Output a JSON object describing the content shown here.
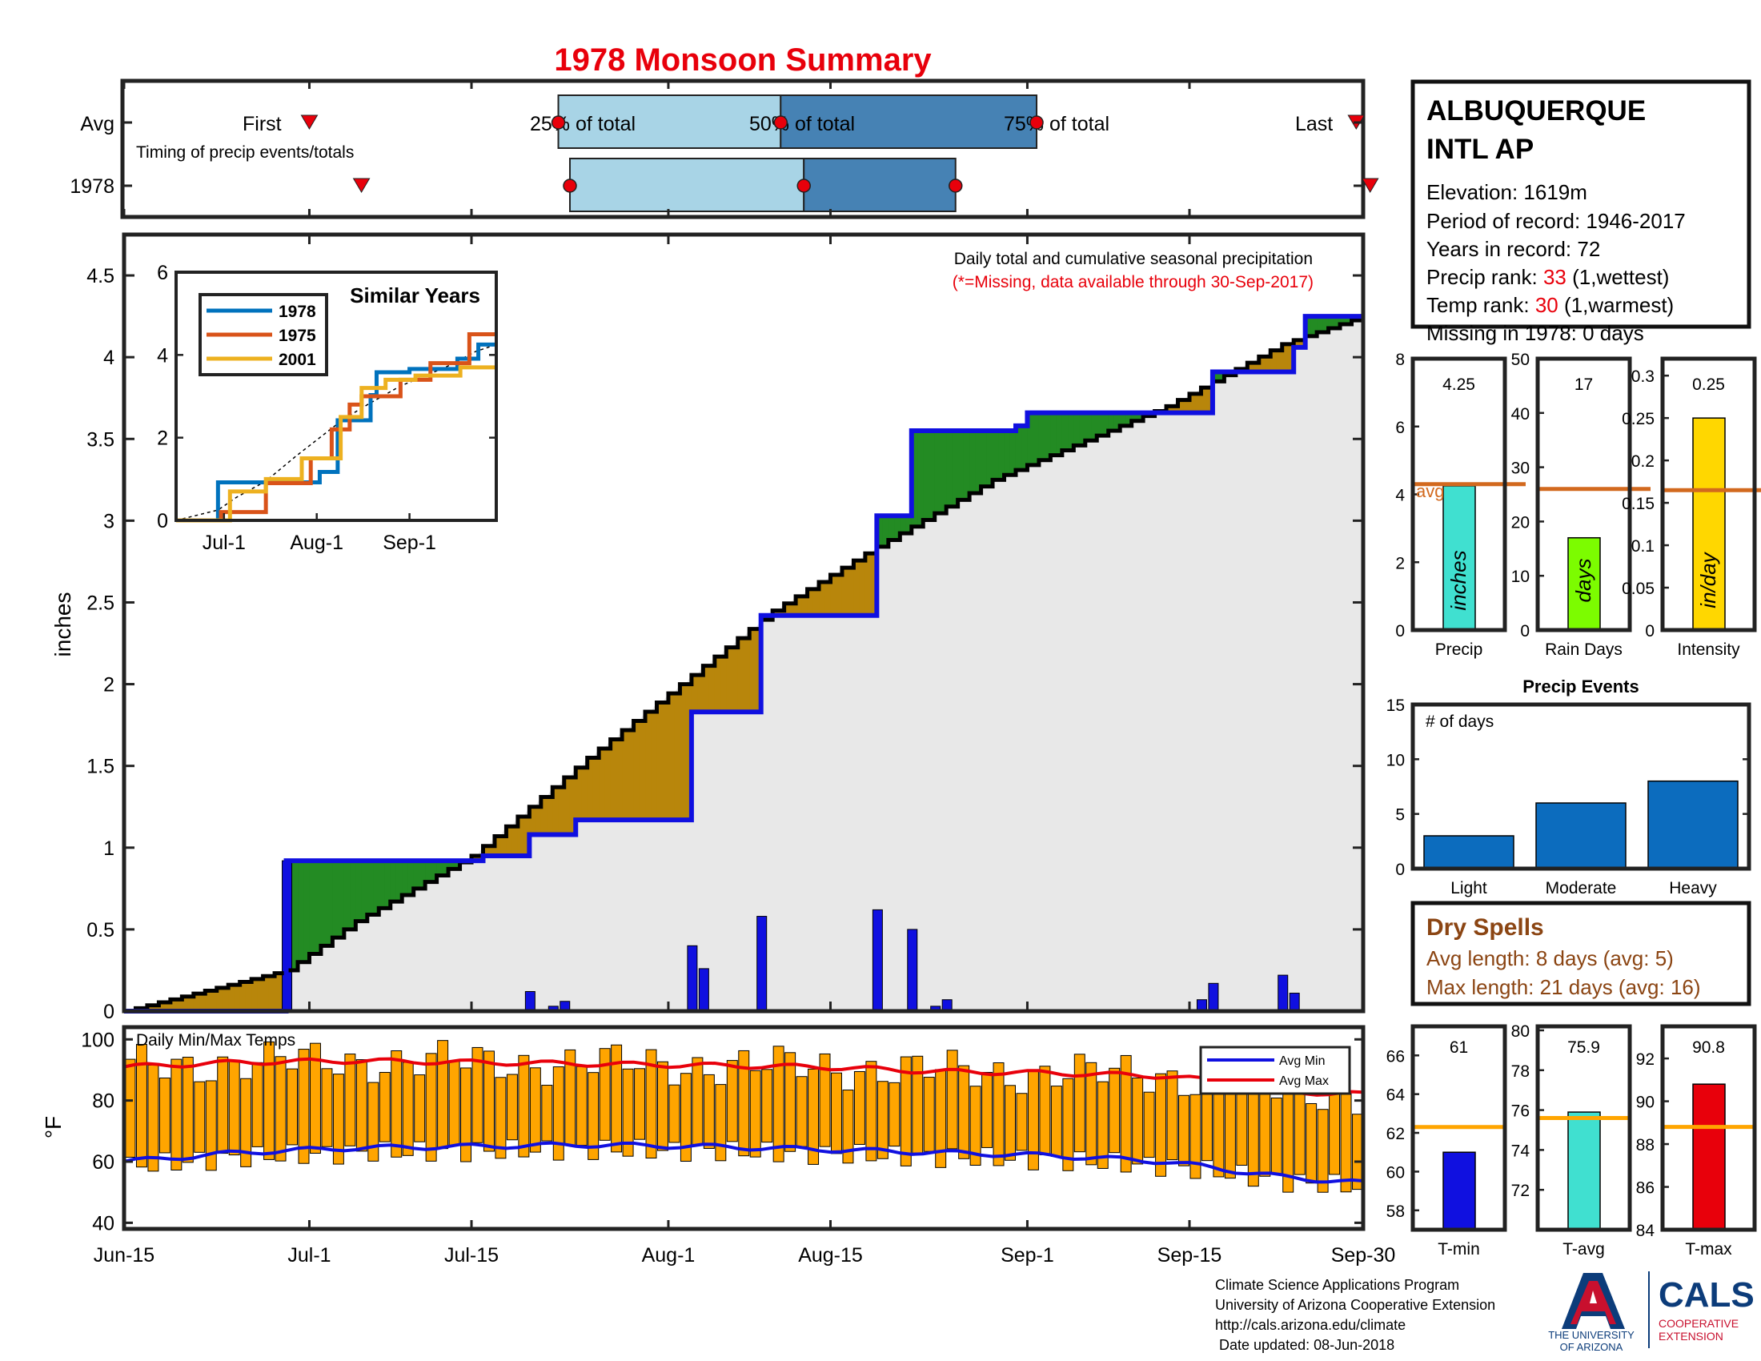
{
  "title": "1978 Monsoon Summary",
  "timing": {
    "row_avg": "Avg",
    "row_year": "1978",
    "first": "First",
    "last": "Last",
    "q25": "25% of total",
    "q50": "50% of total",
    "q75": "75% of total",
    "caption": "Timing of precip events/totals",
    "avg": {
      "first": 16,
      "q25": 37.5,
      "q50": 56.7,
      "q75": 78.8,
      "last": 106.4
    },
    "year": {
      "first": 20.5,
      "q25": 38.5,
      "q50": 58.7,
      "q75": 71.8,
      "last": 107.6
    }
  },
  "main": {
    "ylabel": "inches",
    "annotation": "Daily total and cumulative seasonal precipitation",
    "missing_note": "(*=Missing, data available through 30-Sep-2017)",
    "yticks": [
      "0",
      "0.5",
      "1",
      "1.5",
      "2",
      "2.5",
      "3",
      "3.5",
      "4",
      "4.5"
    ],
    "ylim": [
      0,
      4.75
    ]
  },
  "inset": {
    "title": "Similar Years",
    "yticks": [
      "0",
      "2",
      "4",
      "6"
    ],
    "xticks": [
      "Jul-1",
      "Aug-1",
      "Sep-1"
    ],
    "legend": [
      "1978",
      "1975",
      "2001"
    ]
  },
  "xaxis": {
    "ticks": [
      "Jun-15",
      "Jul-1",
      "Jul-15",
      "Aug-1",
      "Aug-15",
      "Sep-1",
      "Sep-15",
      "Sep-30"
    ],
    "tick_days": [
      0,
      16,
      30,
      47,
      61,
      78,
      92,
      107
    ]
  },
  "temps": {
    "label": "Daily Min/Max Temps",
    "ylabel": "°F",
    "yticks": [
      "40",
      "60",
      "80",
      "100"
    ],
    "legend_min": "Avg Min",
    "legend_max": "Avg Max"
  },
  "station": {
    "name_line1": "ALBUQUERQUE",
    "name_line2": "INTL AP",
    "elevation": "Elevation: 1619m",
    "period": "Period of record: 1946-2017",
    "years": "Years in record: 72",
    "precip_rank_label": "Precip rank: ",
    "precip_rank": "33",
    "precip_rank_note": " (1,wettest)",
    "temp_rank_label": "Temp rank: ",
    "temp_rank": "30",
    "temp_rank_note": " (1,warmest)",
    "missing": "Missing in 1978: 0 days"
  },
  "stats": {
    "precip": {
      "value": "4.25",
      "unit": "inches",
      "label": "Precip",
      "avg_label": "avg",
      "yticks": [
        "0",
        "2",
        "4",
        "6",
        "8"
      ]
    },
    "rain_days": {
      "value": "17",
      "unit": "days",
      "label": "Rain Days",
      "yticks": [
        "0",
        "10",
        "20",
        "30",
        "40",
        "50"
      ]
    },
    "intensity": {
      "value": "0.25",
      "unit": "in/day",
      "label": "Intensity",
      "yticks": [
        "0",
        "0.05",
        "0.1",
        "0.15",
        "0.2",
        "0.25",
        "0.3"
      ]
    }
  },
  "events": {
    "title": "Precip Events",
    "ylabel": "# of days",
    "yticks": [
      "0",
      "5",
      "10",
      "15"
    ]
  },
  "dry_spells": {
    "title": "Dry Spells",
    "avg_length": "Avg length: 8 days (avg: 5)",
    "max_length": "Max length: 21 days (avg: 16)"
  },
  "temp_stats": {
    "tmin": {
      "value": "61",
      "label": "T-min",
      "yticks": [
        "58",
        "60",
        "62",
        "64",
        "66"
      ]
    },
    "tavg": {
      "value": "75.9",
      "label": "T-avg",
      "yticks": [
        "72",
        "74",
        "76",
        "78",
        "80"
      ]
    },
    "tmax": {
      "value": "90.8",
      "label": "T-max",
      "yticks": [
        "84",
        "86",
        "88",
        "90",
        "92"
      ]
    }
  },
  "footer": {
    "line1": "Climate Science Applications Program",
    "line2": "University of Arizona Cooperative Extension",
    "line3": "http://cals.arizona.edu/climate",
    "line4": " Date updated: 08-Jun-2018",
    "ua_line1": "THE UNIVERSITY",
    "ua_line2": "OF ARIZONA",
    "cals": "CALS",
    "cals_sub1": "COOPERATIVE",
    "cals_sub2": "EXTENSION"
  },
  "colors": {
    "title": "#e8000b",
    "observed": "#1010e0",
    "wet_fill": "#238b23",
    "dry_fill": "#b8860b",
    "normal_fill": "#e8e8e8",
    "q_light": "#a8d4e6",
    "q_dark": "#4682b4",
    "temp_bar": "#ffa500",
    "avg_max": "#e8000b",
    "avg_min": "#1010e0",
    "precip_bar": "#40e0d0",
    "raindays_bar": "#7cfc00",
    "intensity_bar": "#ffd700",
    "avg_line": "#d2691e",
    "events_bar": "#0c6cbe",
    "tavg_line": "#ffa500",
    "dry_text": "#8b4513",
    "cals_blue": "#0c3c7a"
  },
  "chart_data": [
    {
      "type": "area",
      "title": "Daily total and cumulative seasonal precipitation",
      "xlabel": "",
      "ylabel": "inches",
      "ylim": [
        0,
        4.75
      ],
      "xlim_days": [
        0,
        107
      ],
      "series": [
        {
          "name": "",
          "kind": "cumulative_observed",
          "x_days": [
            0,
            13,
            14,
            30,
            31,
            34,
            35,
            38,
            39,
            48,
            49,
            54,
            55,
            64,
            65,
            67,
            68,
            77,
            78,
            93,
            94,
            100,
            101,
            102,
            103
          ],
          "y": [
            0,
            0,
            0.92,
            0.92,
            0.95,
            0.95,
            1.08,
            1.08,
            1.17,
            1.17,
            1.83,
            1.83,
            2.42,
            2.42,
            3.03,
            3.03,
            3.55,
            3.58,
            3.66,
            3.66,
            3.91,
            3.91,
            4.06,
            4.25,
            4.25
          ]
        },
        {
          "name": "",
          "kind": "cumulative_average",
          "x_days": [
            0,
            14,
            20,
            30,
            40,
            48,
            56,
            64,
            75,
            90,
            100,
            107
          ],
          "y": [
            0,
            0.25,
            0.55,
            0.95,
            1.55,
            2.0,
            2.45,
            2.8,
            3.25,
            3.7,
            4.08,
            4.25
          ]
        },
        {
          "name": "",
          "kind": "daily_precip",
          "x_days": [
            14,
            35,
            37,
            38,
            49,
            50,
            55,
            65,
            68,
            70,
            71,
            93,
            94,
            100,
            101
          ],
          "y": [
            0.92,
            0.12,
            0.03,
            0.06,
            0.4,
            0.26,
            0.58,
            0.62,
            0.5,
            0.03,
            0.07,
            0.07,
            0.17,
            0.22,
            0.11
          ]
        }
      ]
    },
    {
      "type": "line",
      "title": "Similar Years",
      "ylim": [
        0,
        6
      ],
      "xlim_days": [
        0,
        107
      ],
      "series": [
        {
          "name": "1978",
          "x_days": [
            0,
            14,
            30,
            48,
            54,
            65,
            67,
            78,
            94,
            101,
            107
          ],
          "y": [
            0,
            0.92,
            0.92,
            1.17,
            2.42,
            3.03,
            3.58,
            3.66,
            3.91,
            4.25,
            4.25
          ]
        },
        {
          "name": "1975",
          "x_days": [
            0,
            15,
            30,
            45,
            52,
            58,
            62,
            75,
            85,
            98,
            107
          ],
          "y": [
            0,
            0.2,
            0.9,
            1.5,
            2.2,
            2.8,
            3.0,
            3.4,
            3.8,
            4.5,
            4.5
          ]
        },
        {
          "name": "2001",
          "x_days": [
            0,
            18,
            30,
            42,
            55,
            62,
            70,
            80,
            95,
            107
          ],
          "y": [
            0,
            0.7,
            1.0,
            1.5,
            2.5,
            3.2,
            3.4,
            3.5,
            3.7,
            3.7
          ]
        }
      ]
    },
    {
      "type": "bar",
      "title": "Daily Min/Max Temps",
      "ylabel": "°F",
      "ylim": [
        38,
        104
      ],
      "series": [
        {
          "name": "Avg Max",
          "x_days": [
            0,
            10,
            20,
            30,
            40,
            50,
            60,
            70,
            80,
            90,
            95,
            100,
            107
          ],
          "y": [
            91,
            92.5,
            93,
            92.5,
            92,
            91.5,
            91,
            89.5,
            89,
            88,
            86,
            83,
            82
          ]
        },
        {
          "name": "Avg Min",
          "x_days": [
            0,
            10,
            20,
            30,
            40,
            50,
            60,
            70,
            80,
            90,
            95,
            100,
            107
          ],
          "y": [
            60,
            63,
            64.5,
            65,
            65.5,
            65,
            64,
            63,
            62,
            60,
            57.5,
            55,
            53
          ]
        }
      ]
    },
    {
      "type": "bar",
      "title": "",
      "categories": [
        "Precip",
        "Rain Days",
        "Intensity"
      ],
      "values": [
        4.25,
        17,
        0.25
      ],
      "averages": [
        4.3,
        26,
        0.165
      ],
      "ylims": [
        [
          0,
          8
        ],
        [
          0,
          50
        ],
        [
          0,
          0.32
        ]
      ]
    },
    {
      "type": "bar",
      "title": "Precip Events",
      "ylabel": "# of days",
      "categories": [
        "Light",
        "Moderate",
        "Heavy"
      ],
      "values": [
        3,
        6,
        8
      ],
      "ylim": [
        0,
        15
      ]
    },
    {
      "type": "bar",
      "title": "",
      "categories": [
        "T-min",
        "T-avg",
        "T-max"
      ],
      "values": [
        61,
        75.9,
        90.8
      ],
      "averages": [
        62.3,
        75.6,
        88.8
      ],
      "ylims": [
        [
          57,
          67.5
        ],
        [
          70,
          80.2
        ],
        [
          84,
          93.5
        ]
      ]
    }
  ]
}
